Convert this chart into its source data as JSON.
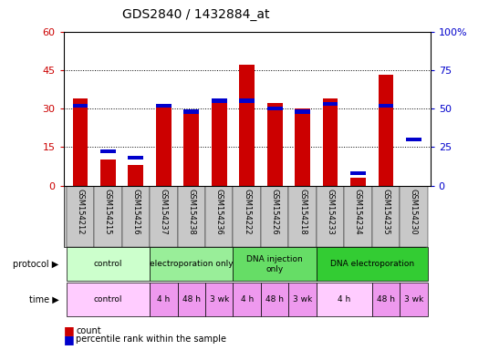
{
  "title": "GDS2840 / 1432884_at",
  "samples": [
    "GSM154212",
    "GSM154215",
    "GSM154216",
    "GSM154237",
    "GSM154238",
    "GSM154236",
    "GSM154222",
    "GSM154226",
    "GSM154218",
    "GSM154233",
    "GSM154234",
    "GSM154235",
    "GSM154230"
  ],
  "count_values": [
    34,
    10,
    8,
    31,
    29,
    34,
    47,
    32,
    30,
    34,
    3,
    43,
    0
  ],
  "percentile_values": [
    52,
    22,
    18,
    52,
    48,
    55,
    55,
    50,
    48,
    53,
    8,
    52,
    30
  ],
  "left_ylim": [
    0,
    60
  ],
  "right_ylim": [
    0,
    100
  ],
  "left_yticks": [
    0,
    15,
    30,
    45,
    60
  ],
  "right_yticks": [
    0,
    25,
    50,
    75,
    100
  ],
  "left_yticklabels": [
    "0",
    "15",
    "30",
    "45",
    "60"
  ],
  "right_yticklabels": [
    "0",
    "25",
    "50",
    "75",
    "100%"
  ],
  "count_color": "#cc0000",
  "percentile_color": "#0000cc",
  "bar_width": 0.55,
  "pct_bar_width": 0.55,
  "pct_bar_height": 1.5,
  "protocol_groups": [
    {
      "label": "control",
      "start": 0,
      "end": 3,
      "color": "#ccffcc"
    },
    {
      "label": "electroporation only",
      "start": 3,
      "end": 6,
      "color": "#99ee99"
    },
    {
      "label": "DNA injection\nonly",
      "start": 6,
      "end": 9,
      "color": "#66dd66"
    },
    {
      "label": "DNA electroporation",
      "start": 9,
      "end": 13,
      "color": "#33cc33"
    }
  ],
  "time_groups": [
    {
      "label": "control",
      "start": 0,
      "end": 3,
      "color": "#ffccff"
    },
    {
      "label": "4 h",
      "start": 3,
      "end": 4,
      "color": "#ee99ee"
    },
    {
      "label": "48 h",
      "start": 4,
      "end": 5,
      "color": "#ee99ee"
    },
    {
      "label": "3 wk",
      "start": 5,
      "end": 6,
      "color": "#ee99ee"
    },
    {
      "label": "4 h",
      "start": 6,
      "end": 7,
      "color": "#ee99ee"
    },
    {
      "label": "48 h",
      "start": 7,
      "end": 8,
      "color": "#ee99ee"
    },
    {
      "label": "3 wk",
      "start": 8,
      "end": 9,
      "color": "#ee99ee"
    },
    {
      "label": "4 h",
      "start": 9,
      "end": 11,
      "color": "#ffccff"
    },
    {
      "label": "48 h",
      "start": 11,
      "end": 12,
      "color": "#ee99ee"
    },
    {
      "label": "3 wk",
      "start": 12,
      "end": 13,
      "color": "#ee99ee"
    }
  ],
  "xlabel_color": "#cc0000",
  "ylabel_right_color": "#0000cc",
  "background_color": "#ffffff",
  "plot_bg_color": "#ffffff",
  "grid_color": "#000000",
  "sample_bg_color": "#c8c8c8"
}
